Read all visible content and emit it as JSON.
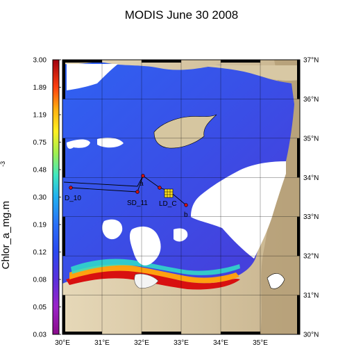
{
  "title": "MODIS June 30 2008",
  "colorbar": {
    "label_main": "Chlor_a_mg.m",
    "label_exp": "-3",
    "ticks": [
      "3.00",
      "1.89",
      "1.19",
      "0.75",
      "0.48",
      "0.30",
      "0.19",
      "0.12",
      "0.08",
      "0.05",
      "0.03"
    ],
    "colors": [
      "#8a0b8a",
      "#a020c8",
      "#6a2ed8",
      "#3a3ee0",
      "#2a55f0",
      "#2a80f8",
      "#20b8f0",
      "#30e0c8",
      "#60f060",
      "#d8f028",
      "#ffd020",
      "#ff9010",
      "#ff4010",
      "#e00010",
      "#a00010"
    ]
  },
  "map": {
    "lon_labels": [
      "30°E",
      "31°E",
      "32°E",
      "33°E",
      "34°E",
      "35°E"
    ],
    "lat_labels": [
      "37°N",
      "36°N",
      "35°N",
      "34°N",
      "33°N",
      "32°N",
      "31°N",
      "30°N"
    ],
    "lon_values": [
      30,
      31,
      32,
      33,
      34,
      35
    ],
    "lat_values": [
      37,
      36,
      35,
      34,
      33,
      32,
      31,
      30
    ],
    "lon_range": [
      30,
      36
    ],
    "lat_range": [
      30,
      37
    ],
    "colors": {
      "land": "#d8c8a4",
      "land_dark": "#b8a27a",
      "sea": "#2a5ef0",
      "sea_deep": "#4a3ad8",
      "clouds": "#ffffff",
      "coast_bloom": "#d01010"
    },
    "stations": [
      {
        "label": "D_10"
      },
      {
        "label": "SD_11"
      },
      {
        "label": "LD_C"
      },
      {
        "label": "a"
      },
      {
        "label": "b"
      }
    ]
  }
}
